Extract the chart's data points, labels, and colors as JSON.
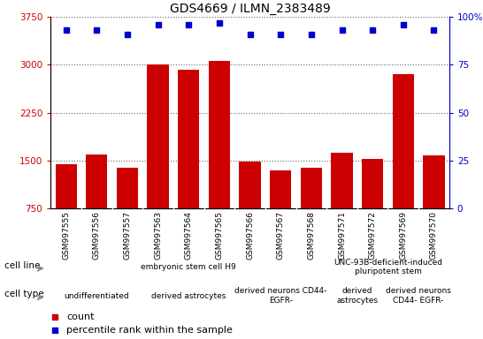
{
  "title": "GDS4669 / ILMN_2383489",
  "samples": [
    "GSM997555",
    "GSM997556",
    "GSM997557",
    "GSM997563",
    "GSM997564",
    "GSM997565",
    "GSM997566",
    "GSM997567",
    "GSM997568",
    "GSM997571",
    "GSM997572",
    "GSM997569",
    "GSM997570"
  ],
  "counts": [
    1450,
    1600,
    1390,
    3000,
    2930,
    3060,
    1490,
    1340,
    1390,
    1630,
    1530,
    2850,
    1580
  ],
  "percentiles": [
    93,
    93,
    91,
    96,
    96,
    97,
    91,
    91,
    91,
    93,
    93,
    96,
    93
  ],
  "ylim_left": [
    750,
    3750
  ],
  "ylim_right": [
    0,
    100
  ],
  "yticks_left": [
    750,
    1500,
    2250,
    3000,
    3750
  ],
  "yticks_right": [
    0,
    25,
    50,
    75,
    100
  ],
  "bar_color": "#cc0000",
  "dot_color": "#0000cc",
  "plot_bg": "#ffffff",
  "tick_label_bg": "#d0d0d0",
  "cell_line_groups": [
    {
      "label": "embryonic stem cell H9",
      "start": 0,
      "end": 8,
      "color": "#aaffaa"
    },
    {
      "label": "UNC-93B-deficient-induced\npluripotent stem",
      "start": 9,
      "end": 12,
      "color": "#00dd00"
    }
  ],
  "cell_type_groups": [
    {
      "label": "undifferentiated",
      "start": 0,
      "end": 2,
      "color": "#ffaaff"
    },
    {
      "label": "derived astrocytes",
      "start": 3,
      "end": 5,
      "color": "#ffaaff"
    },
    {
      "label": "derived neurons CD44-\nEGFR-",
      "start": 6,
      "end": 8,
      "color": "#ff66ff"
    },
    {
      "label": "derived\nastrocytes",
      "start": 9,
      "end": 10,
      "color": "#ffaaff"
    },
    {
      "label": "derived neurons\nCD44- EGFR-",
      "start": 11,
      "end": 12,
      "color": "#ff66ff"
    }
  ],
  "legend_count_color": "#cc0000",
  "legend_dot_color": "#0000cc",
  "n_samples": 13
}
